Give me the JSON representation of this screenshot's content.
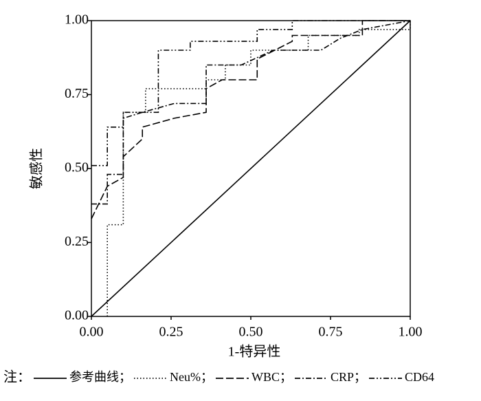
{
  "chart_data": {
    "type": "line",
    "xlabel": "1-特异性",
    "ylabel": "敏感性",
    "xlim": [
      0,
      1
    ],
    "ylim": [
      0,
      1
    ],
    "xticks": [
      {
        "value": 0,
        "label": "0.00"
      },
      {
        "value": 0.25,
        "label": "0.25"
      },
      {
        "value": 0.5,
        "label": "0.50"
      },
      {
        "value": 0.75,
        "label": "0.75"
      },
      {
        "value": 1,
        "label": "1.00"
      }
    ],
    "yticks": [
      {
        "value": 0,
        "label": "0.00"
      },
      {
        "value": 0.25,
        "label": "0.25"
      },
      {
        "value": 0.5,
        "label": "0.50"
      },
      {
        "value": 0.75,
        "label": "0.75"
      },
      {
        "value": 1,
        "label": "1.00"
      }
    ],
    "legend_prefix": "注：",
    "legend_separator": "；",
    "series": [
      {
        "name": "参考曲线",
        "color": "#000000",
        "dash": "solid",
        "x": [
          0,
          1
        ],
        "y": [
          0,
          1
        ]
      },
      {
        "name": "Neu%",
        "color": "#000000",
        "dash": "dotted",
        "x": [
          0.05,
          0.05,
          0.1,
          0.1,
          0.17,
          0.17,
          0.36,
          0.36,
          0.42,
          0.42,
          0.5,
          0.5,
          0.68,
          0.68,
          0.84,
          0.84,
          1,
          1
        ],
        "y": [
          0,
          0.31,
          0.31,
          0.69,
          0.69,
          0.77,
          0.77,
          0.8,
          0.8,
          0.85,
          0.85,
          0.9,
          0.9,
          0.95,
          0.95,
          0.97,
          0.97,
          1
        ]
      },
      {
        "name": "WBC",
        "color": "#000000",
        "dash": "dashed",
        "x": [
          0,
          0.05,
          0.1,
          0.1,
          0.16,
          0.16,
          0.26,
          0.36,
          0.36,
          0.41,
          0.52,
          0.52,
          0.63,
          0.63,
          0.85,
          0.85,
          1
        ],
        "y": [
          0.33,
          0.44,
          0.47,
          0.54,
          0.6,
          0.64,
          0.67,
          0.69,
          0.77,
          0.8,
          0.8,
          0.87,
          0.93,
          0.95,
          0.95,
          1,
          1
        ]
      },
      {
        "name": "CRP",
        "color": "#000000",
        "dash": "dashdot",
        "x": [
          0,
          0.05,
          0.05,
          0.1,
          0.1,
          0.16,
          0.26,
          0.36,
          0.36,
          0.47,
          0.57,
          0.72,
          0.78,
          0.85,
          1
        ],
        "y": [
          0.38,
          0.38,
          0.48,
          0.48,
          0.67,
          0.69,
          0.72,
          0.72,
          0.85,
          0.85,
          0.9,
          0.9,
          0.94,
          0.97,
          1
        ]
      },
      {
        "name": "CD64",
        "color": "#000000",
        "dash": "dashdotdot",
        "x": [
          0,
          0.05,
          0.05,
          0.1,
          0.1,
          0.21,
          0.21,
          0.31,
          0.31,
          0.52,
          0.52,
          0.63,
          0.63,
          1
        ],
        "y": [
          0.51,
          0.51,
          0.64,
          0.64,
          0.69,
          0.69,
          0.9,
          0.9,
          0.93,
          0.93,
          0.97,
          0.97,
          1,
          1
        ]
      }
    ]
  }
}
